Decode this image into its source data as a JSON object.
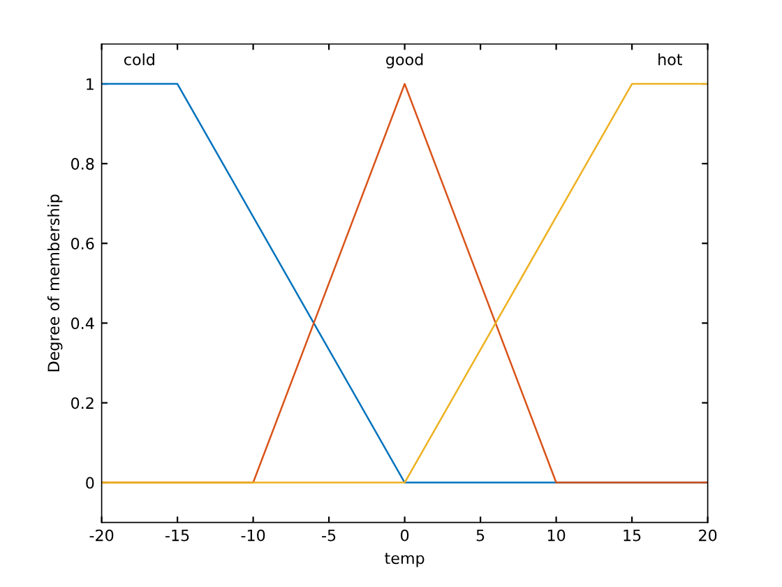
{
  "chart_data": {
    "type": "line",
    "xlabel": "temp",
    "ylabel": "Degree of membership",
    "series": [
      {
        "name": "cold",
        "color": "#0072bd",
        "x": [
          -20,
          -15,
          0,
          20
        ],
        "values": [
          1,
          1,
          0,
          0
        ]
      },
      {
        "name": "good",
        "color": "#d95319",
        "x": [
          -20,
          -10,
          0,
          10,
          20
        ],
        "values": [
          0,
          0,
          1,
          0,
          0
        ]
      },
      {
        "name": "hot",
        "color": "#edb120",
        "x": [
          -20,
          0,
          15,
          20
        ],
        "values": [
          0,
          0,
          1,
          1
        ]
      }
    ],
    "xlim": [
      -20,
      20
    ],
    "xticks": [
      -20,
      -15,
      -10,
      -5,
      0,
      5,
      10,
      15,
      20
    ],
    "ylim": [
      -0.1,
      1.1
    ],
    "yticks": [
      0,
      0.2,
      0.4,
      0.6,
      0.8,
      1
    ],
    "grid": false,
    "legend": false,
    "marker": "none",
    "line_style": "solid"
  }
}
